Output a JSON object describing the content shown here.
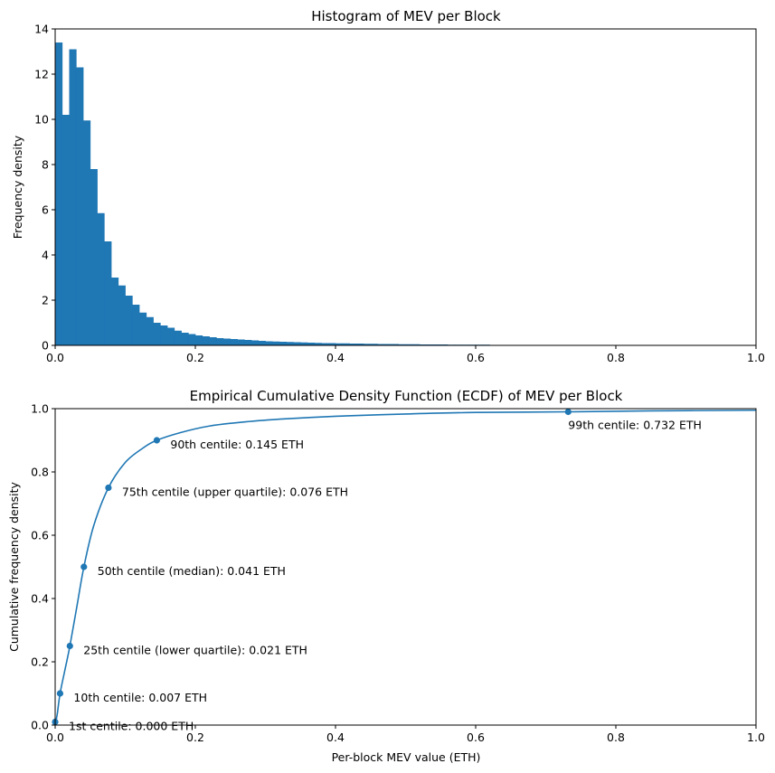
{
  "chart_data": [
    {
      "type": "bar",
      "title": "Histogram of MEV per Block",
      "xlabel": "",
      "ylabel": "Frequency density",
      "xlim": [
        0,
        1.0
      ],
      "ylim": [
        0,
        14
      ],
      "xticks": [
        "0.0",
        "0.2",
        "0.4",
        "0.6",
        "0.8",
        "1.0"
      ],
      "yticks": [
        "0",
        "2",
        "4",
        "6",
        "8",
        "10",
        "12",
        "14"
      ],
      "bin_width": 0.01,
      "color": "#1f77b4",
      "values": [
        13.4,
        10.2,
        13.1,
        12.3,
        9.95,
        7.8,
        5.85,
        4.6,
        3.0,
        2.65,
        2.2,
        1.8,
        1.45,
        1.25,
        1.0,
        0.88,
        0.78,
        0.65,
        0.56,
        0.5,
        0.44,
        0.4,
        0.36,
        0.32,
        0.3,
        0.28,
        0.26,
        0.24,
        0.22,
        0.2,
        0.18,
        0.17,
        0.16,
        0.15,
        0.14,
        0.13,
        0.12,
        0.11,
        0.1,
        0.1,
        0.09,
        0.09,
        0.08,
        0.08,
        0.07,
        0.07,
        0.06,
        0.06,
        0.06,
        0.05,
        0.05,
        0.05,
        0.04,
        0.04,
        0.04,
        0.04,
        0.03,
        0.03,
        0.03,
        0.03,
        0.03,
        0.03,
        0.02,
        0.02,
        0.02,
        0.02,
        0.02,
        0.02,
        0.02,
        0.02,
        0.02,
        0.02,
        0.02,
        0.01,
        0.01,
        0.01,
        0.01,
        0.01,
        0.01,
        0.01,
        0.01,
        0.01,
        0.01,
        0.01,
        0.01,
        0.01,
        0.01,
        0.01,
        0.01,
        0.01,
        0.01,
        0.01,
        0.01,
        0.01,
        0.01,
        0.01,
        0.01,
        0.01,
        0.01,
        0.01
      ]
    },
    {
      "type": "line",
      "title": "Empirical Cumulative Density Function (ECDF) of MEV per Block",
      "xlabel": "Per-block MEV value (ETH)",
      "ylabel": "Cumulative frequency density",
      "xlim": [
        0,
        1.0
      ],
      "ylim": [
        0,
        1.0
      ],
      "xticks": [
        "0.0",
        "0.2",
        "0.4",
        "0.6",
        "0.8",
        "1.0"
      ],
      "yticks": [
        "0.0",
        "0.2",
        "0.4",
        "0.6",
        "0.8",
        "1.0"
      ],
      "color": "#1f77b4",
      "curve": {
        "x": [
          0.0,
          0.003,
          0.007,
          0.014,
          0.021,
          0.031,
          0.041,
          0.055,
          0.076,
          0.1,
          0.125,
          0.145,
          0.18,
          0.22,
          0.27,
          0.33,
          0.4,
          0.5,
          0.6,
          0.732,
          0.85,
          1.0
        ],
        "y": [
          0.0,
          0.035,
          0.1,
          0.175,
          0.25,
          0.375,
          0.5,
          0.63,
          0.75,
          0.83,
          0.875,
          0.9,
          0.925,
          0.945,
          0.958,
          0.968,
          0.976,
          0.983,
          0.988,
          0.99,
          0.993,
          0.995
        ]
      },
      "centiles": [
        {
          "x": 0.0,
          "y": 0.01,
          "label": "1st centile: 0.000 ETH"
        },
        {
          "x": 0.007,
          "y": 0.1,
          "label": "10th centile: 0.007 ETH"
        },
        {
          "x": 0.021,
          "y": 0.25,
          "label": "25th centile (lower quartile): 0.021 ETH"
        },
        {
          "x": 0.041,
          "y": 0.5,
          "label": "50th centile (median): 0.041 ETH"
        },
        {
          "x": 0.076,
          "y": 0.75,
          "label": "75th centile (upper quartile): 0.076 ETH"
        },
        {
          "x": 0.145,
          "y": 0.9,
          "label": "90th centile: 0.145 ETH"
        },
        {
          "x": 0.732,
          "y": 0.99,
          "label": "99th centile: 0.732 ETH"
        }
      ]
    }
  ]
}
